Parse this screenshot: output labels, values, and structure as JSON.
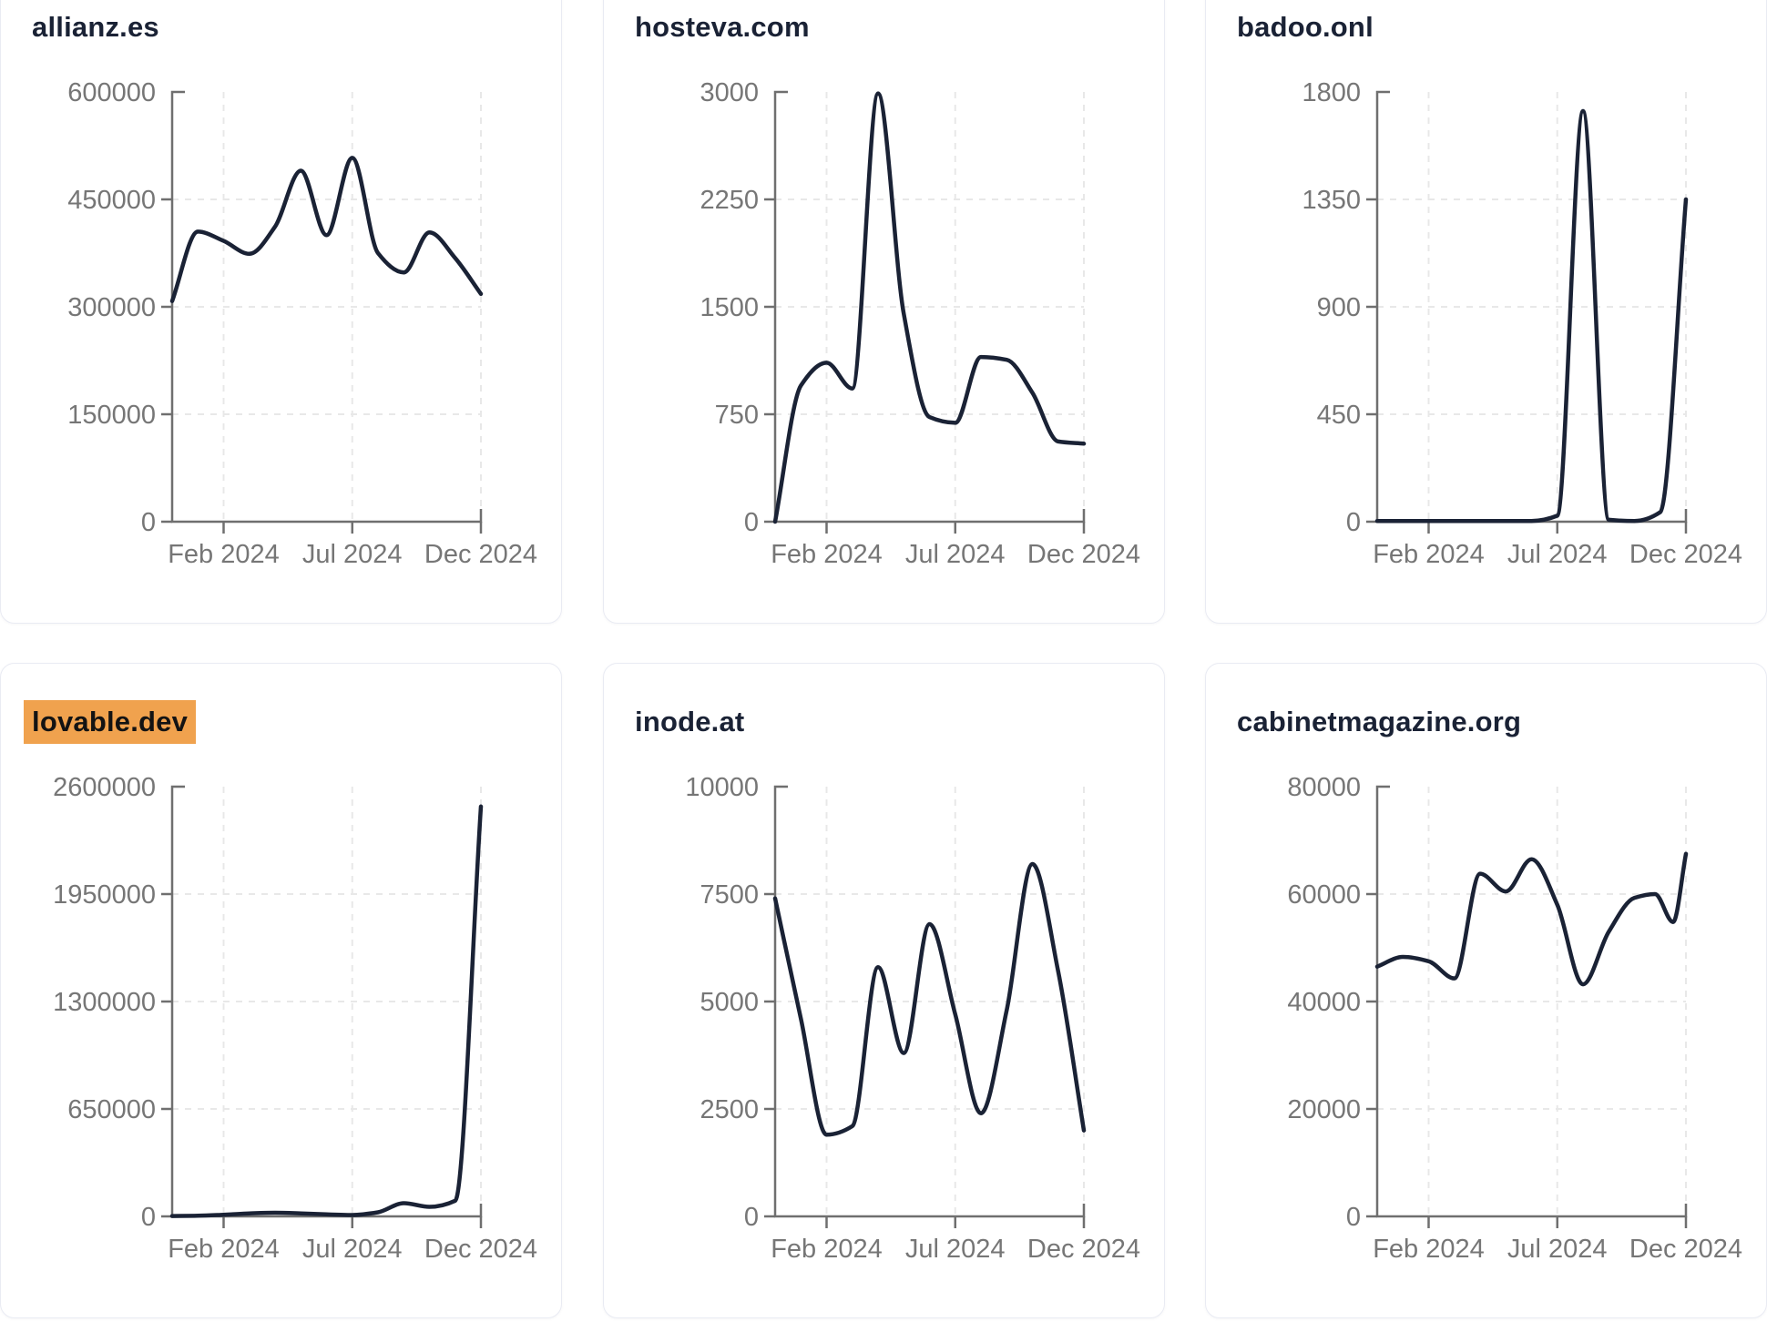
{
  "page": {
    "title": "Domain traffic charts grid",
    "columns": 3,
    "rows": 2
  },
  "theme": {
    "background": "#ffffff",
    "card_border": "#e9ebf3",
    "title_color": "#1a2235",
    "line_color": "#1a2235",
    "axis_color": "#6f6f6f",
    "tick_label_color": "#767676",
    "grid_color": "#e8e8e8",
    "highlight_bg": "#f0a24e",
    "highlight_text": "#131313"
  },
  "chart_data": [
    {
      "type": "line",
      "title": "allianz.es",
      "title_highlighted": false,
      "x_months": [
        0,
        1,
        2,
        3,
        4,
        5,
        6,
        7,
        8,
        9,
        10,
        11,
        12
      ],
      "values": [
        308000,
        405000,
        392000,
        374000,
        412000,
        490000,
        400000,
        508000,
        375000,
        348000,
        404000,
        368000,
        318000
      ],
      "ylim": [
        0,
        600000
      ],
      "y_ticks": [
        0,
        150000,
        300000,
        450000,
        600000
      ],
      "x_tick_months": [
        2,
        7,
        12
      ],
      "x_tick_labels": [
        "Feb 2024",
        "Jul 2024",
        "Dec 2024"
      ],
      "grid": "dashed",
      "legend": "none"
    },
    {
      "type": "line",
      "title": "hosteva.com",
      "title_highlighted": false,
      "x_months": [
        0,
        1,
        2,
        3,
        4,
        5,
        6,
        7,
        8,
        9,
        10,
        11,
        12
      ],
      "values": [
        0,
        950,
        1110,
        930,
        2990,
        1450,
        730,
        690,
        1150,
        1130,
        900,
        560,
        545
      ],
      "ylim": [
        0,
        3000
      ],
      "y_ticks": [
        0,
        750,
        1500,
        2250,
        3000
      ],
      "x_tick_months": [
        2,
        7,
        12
      ],
      "x_tick_labels": [
        "Feb 2024",
        "Jul 2024",
        "Dec 2024"
      ],
      "grid": "dashed",
      "legend": "none"
    },
    {
      "type": "line",
      "title": "badoo.onl",
      "title_highlighted": false,
      "x_months": [
        0,
        1,
        2,
        3,
        4,
        5,
        6,
        7,
        8,
        9,
        10,
        11,
        12
      ],
      "values": [
        3,
        3,
        3,
        3,
        3,
        3,
        3,
        25,
        1720,
        8,
        3,
        40,
        1350
      ],
      "ylim": [
        0,
        1800
      ],
      "y_ticks": [
        0,
        450,
        900,
        1350,
        1800
      ],
      "x_tick_months": [
        2,
        7,
        12
      ],
      "x_tick_labels": [
        "Feb 2024",
        "Jul 2024",
        "Dec 2024"
      ],
      "grid": "dashed",
      "legend": "none"
    },
    {
      "type": "line",
      "title": "lovable.dev",
      "title_highlighted": true,
      "x_months": [
        0,
        1,
        2,
        3,
        4,
        5,
        6,
        7,
        8,
        9,
        10,
        11,
        12
      ],
      "values": [
        2000,
        4000,
        10000,
        18000,
        22000,
        18000,
        12000,
        8000,
        25000,
        80000,
        58000,
        95000,
        2480000
      ],
      "ylim": [
        0,
        2600000
      ],
      "y_ticks": [
        0,
        650000,
        1300000,
        1950000,
        2600000
      ],
      "x_tick_months": [
        2,
        7,
        12
      ],
      "x_tick_labels": [
        "Feb 2024",
        "Jul 2024",
        "Dec 2024"
      ],
      "grid": "dashed",
      "legend": "none"
    },
    {
      "type": "line",
      "title": "inode.at",
      "title_highlighted": false,
      "x_months": [
        0,
        1,
        2,
        3,
        4,
        5,
        6,
        7,
        8,
        9,
        10,
        11,
        12
      ],
      "values": [
        7400,
        4600,
        1900,
        2100,
        5800,
        3800,
        6800,
        4700,
        2400,
        4800,
        8200,
        5700,
        2000
      ],
      "ylim": [
        0,
        10000
      ],
      "y_ticks": [
        0,
        2500,
        5000,
        7500,
        10000
      ],
      "x_tick_months": [
        2,
        7,
        12
      ],
      "x_tick_labels": [
        "Feb 2024",
        "Jul 2024",
        "Dec 2024"
      ],
      "grid": "dashed",
      "legend": "none"
    },
    {
      "type": "line",
      "title": "cabinetmagazine.org",
      "title_highlighted": false,
      "x_months": [
        0,
        1,
        2,
        3,
        4,
        5,
        6,
        7,
        8,
        9,
        10,
        10.8,
        11.5,
        12
      ],
      "values": [
        46500,
        48300,
        47500,
        44300,
        63800,
        60500,
        66500,
        58000,
        43200,
        53000,
        59300,
        60000,
        54800,
        67500
      ],
      "ylim": [
        0,
        80000
      ],
      "y_ticks": [
        0,
        20000,
        40000,
        60000,
        80000
      ],
      "x_tick_months": [
        2,
        7,
        12
      ],
      "x_tick_labels": [
        "Feb 2024",
        "Jul 2024",
        "Dec 2024"
      ],
      "grid": "dashed",
      "legend": "none"
    }
  ]
}
